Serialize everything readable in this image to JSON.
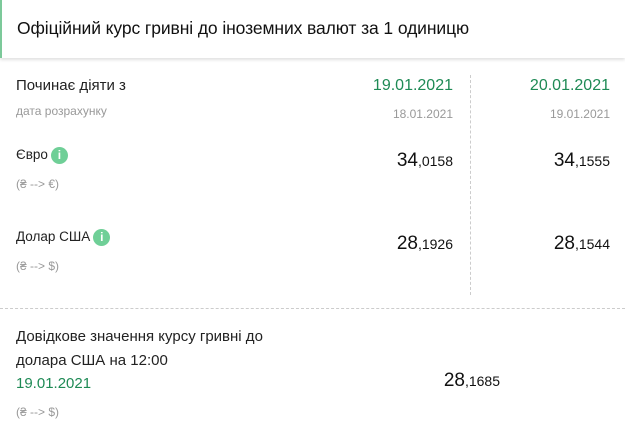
{
  "title": "Офіційний курс гривні до іноземних валют за 1 одиницю",
  "header_row": {
    "label": "Починає діяти з",
    "sublabel": "дата розрахунку",
    "dates": [
      "19.01.2021",
      "20.01.2021"
    ],
    "calc_dates": [
      "18.01.2021",
      "19.01.2021"
    ]
  },
  "currencies": [
    {
      "name": "Євро",
      "direction": "(₴ --> €)",
      "values": [
        {
          "int": "34",
          "dec": ",0158"
        },
        {
          "int": "34",
          "dec": ",1555"
        }
      ]
    },
    {
      "name": "Долар США",
      "direction": "(₴ --> $)",
      "values": [
        {
          "int": "28",
          "dec": ",1926"
        },
        {
          "int": "28",
          "dec": ",1544"
        }
      ]
    }
  ],
  "reference": {
    "line1": "Довідкове значення курсу гривні до",
    "line2": "долара США на 12:00",
    "date": "19.01.2021",
    "direction": "(₴ --> $)",
    "value": {
      "int": "28",
      "dec": ",1685"
    }
  },
  "info_icon": "i",
  "colors": {
    "accent": "#1e8a55",
    "info": "#6fcf97"
  }
}
